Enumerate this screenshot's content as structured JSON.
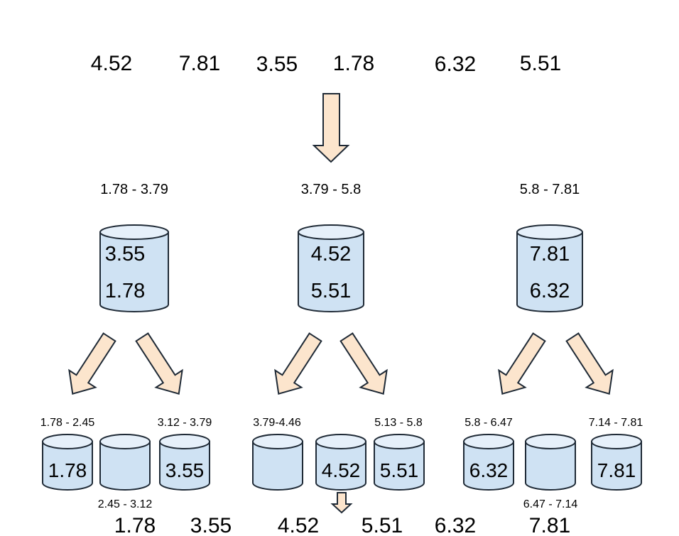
{
  "input": [
    "4.52",
    "7.81",
    "3.55",
    "1.78",
    "6.32",
    "5.51"
  ],
  "buckets": [
    {
      "range": "1.78 - 3.79",
      "values": [
        "3.55",
        "1.78"
      ]
    },
    {
      "range": "3.79 - 5.8",
      "values": [
        "4.52",
        "5.51"
      ]
    },
    {
      "range": "5.8 - 7.81",
      "values": [
        "7.81",
        "6.32"
      ]
    }
  ],
  "sub_buckets": [
    {
      "range": "1.78 - 2.45",
      "value": "1.78"
    },
    {
      "range": "2.45 - 3.12",
      "value": ""
    },
    {
      "range": "3.12 - 3.79",
      "value": "3.55"
    },
    {
      "range": "3.79-4.46",
      "value": ""
    },
    {
      "range": "",
      "value": "4.52"
    },
    {
      "range": "5.13 - 5.8",
      "value": "5.51"
    },
    {
      "range": "5.8 - 6.47",
      "value": "6.32"
    },
    {
      "range": "6.47 - 7.14",
      "value": ""
    },
    {
      "range": "7.14 - 7.81",
      "value": "7.81"
    }
  ],
  "output": [
    "1.78",
    "3.55",
    "4.52",
    "5.51",
    "6.32",
    "7.81"
  ],
  "colors": {
    "bucket": "#cfe2f3",
    "arrow": "#fce5cd",
    "outline": "#1f2a36"
  }
}
